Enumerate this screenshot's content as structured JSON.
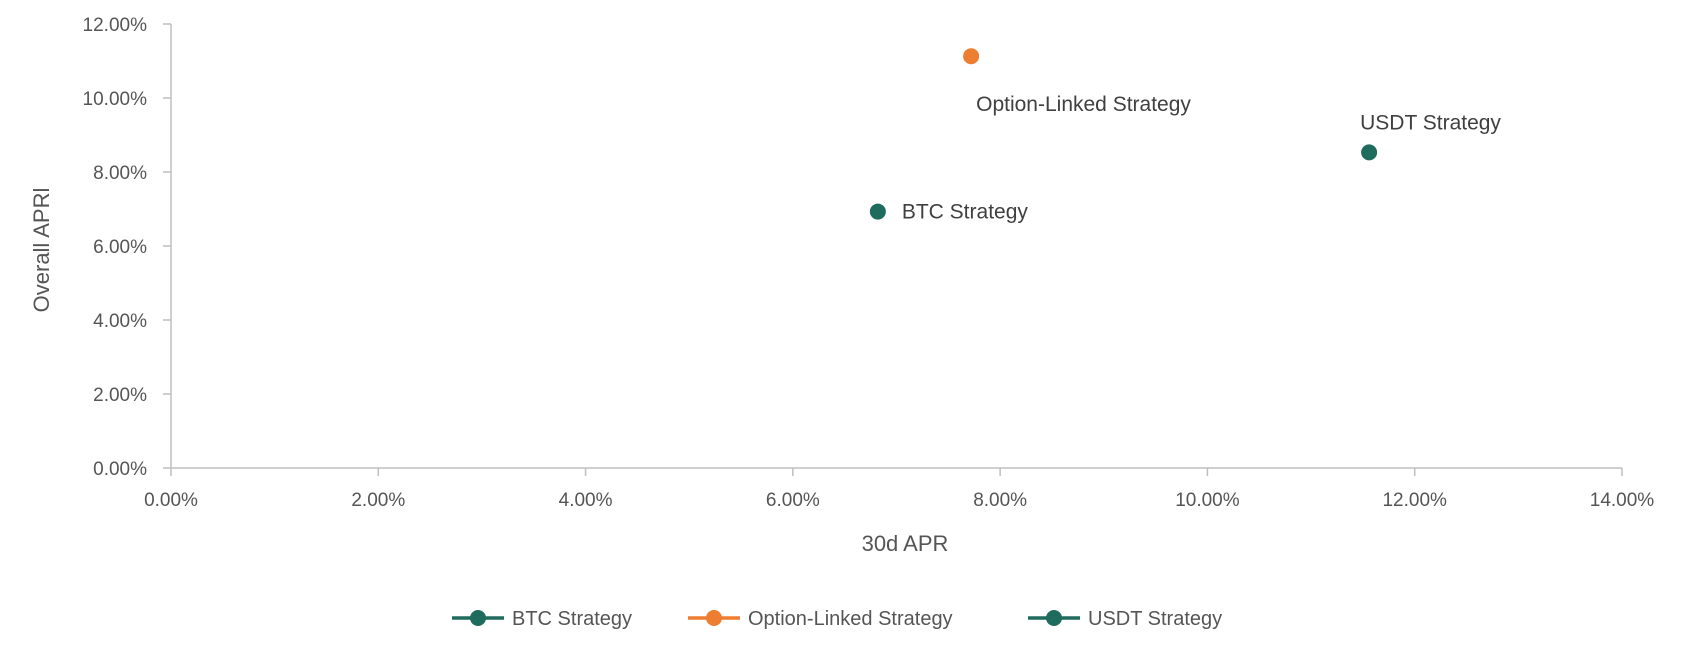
{
  "chart_data": {
    "type": "scatter",
    "title": "",
    "xlabel": "30d APR",
    "ylabel": "Overall APRl",
    "xlim": [
      0,
      14
    ],
    "ylim": [
      0,
      12
    ],
    "x_ticks": [
      "0.00%",
      "2.00%",
      "4.00%",
      "6.00%",
      "8.00%",
      "10.00%",
      "12.00%",
      "14.00%"
    ],
    "y_ticks": [
      "0.00%",
      "2.00%",
      "4.00%",
      "6.00%",
      "8.00%",
      "10.00%",
      "12.00%"
    ],
    "x_unit": "%",
    "y_unit": "%",
    "grid": false,
    "legend_position": "bottom",
    "series": [
      {
        "name": "BTC Strategy",
        "color": "#1f6b5e",
        "x": [
          6.82
        ],
        "y": [
          6.93
        ],
        "label": "BTC Strategy",
        "label_position": "right"
      },
      {
        "name": "Option-Linked Strategy",
        "color": "#ed7d31",
        "x": [
          7.72
        ],
        "y": [
          11.13
        ],
        "label": "Option-Linked Strategy",
        "label_position": "below"
      },
      {
        "name": "USDT Strategy",
        "color": "#1f6b5e",
        "x": [
          11.56
        ],
        "y": [
          8.53
        ],
        "label": "USDT Strategy",
        "label_position": "above"
      }
    ]
  }
}
